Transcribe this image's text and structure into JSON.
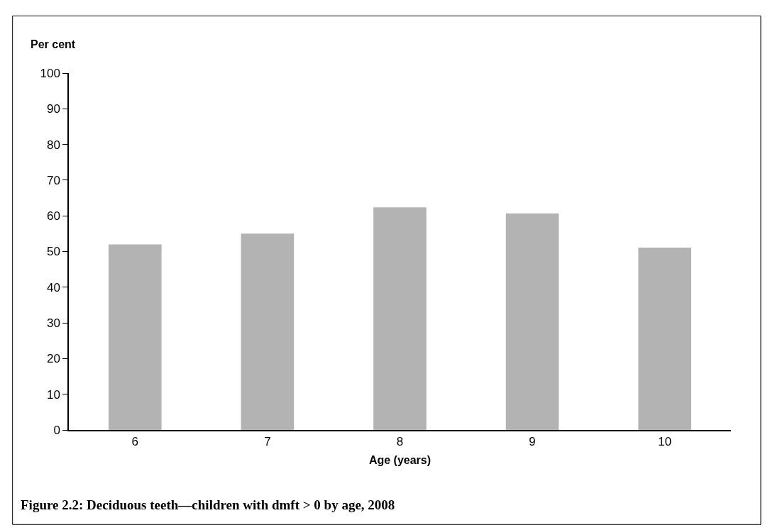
{
  "chart_data": {
    "type": "bar",
    "ylabel": "Per cent",
    "xlabel": "Age (years)",
    "categories": [
      "6",
      "7",
      "8",
      "9",
      "10"
    ],
    "values": [
      52,
      55,
      62.4,
      60.7,
      51.1
    ],
    "color": "#b3b3b3",
    "ylim": [
      0,
      100
    ],
    "yticks": [
      0,
      10,
      20,
      30,
      40,
      50,
      60,
      70,
      80,
      90,
      100
    ],
    "annotations": [
      "Figure 2.2: Deciduous teeth—children with dmft > 0 by age, 2008"
    ]
  }
}
